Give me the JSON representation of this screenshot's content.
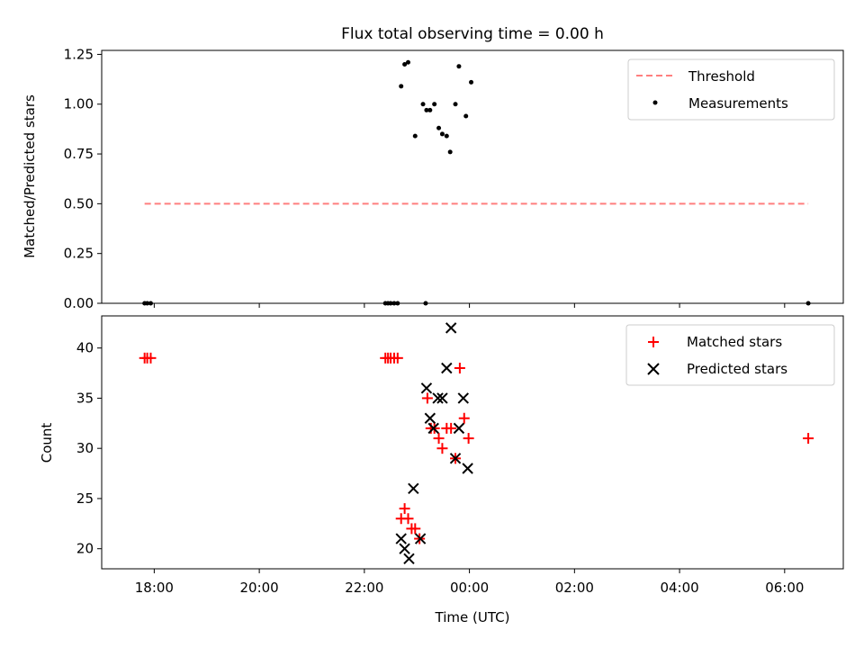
{
  "figure": {
    "title": "Flux total observing time = 0.00 h"
  },
  "chart_data": [
    {
      "type": "scatter",
      "ylabel": "Matched/Predicted stars",
      "xlabel": "",
      "x_axis": "time",
      "xlim": [
        "17:00",
        "07:07"
      ],
      "ylim": [
        0,
        1.27
      ],
      "yticks": [
        0.0,
        0.25,
        0.5,
        0.75,
        1.0,
        1.25
      ],
      "ytick_labels": [
        "0.00",
        "0.25",
        "0.50",
        "0.75",
        "1.00",
        "1.25"
      ],
      "grid": false,
      "legend": {
        "placement": "top-right",
        "entries": [
          "Threshold",
          "Measurements"
        ]
      },
      "threshold": {
        "name": "Threshold",
        "value": 0.5,
        "x": [
          "17:49",
          "06:27"
        ],
        "color": "#ff7f7f"
      },
      "series": [
        {
          "name": "Measurements",
          "marker": "dot",
          "color": "#000000",
          "points": [
            [
              "17:49",
              0.0
            ],
            [
              "17:52",
              0.0
            ],
            [
              "17:56",
              0.0
            ],
            [
              "22:24",
              0.0
            ],
            [
              "22:27",
              0.0
            ],
            [
              "22:30",
              0.0
            ],
            [
              "22:34",
              0.0
            ],
            [
              "22:38",
              0.0
            ],
            [
              "23:10",
              0.0
            ],
            [
              "22:42",
              1.09
            ],
            [
              "22:46",
              1.2
            ],
            [
              "22:50",
              1.21
            ],
            [
              "22:58",
              0.84
            ],
            [
              "23:07",
              1.0
            ],
            [
              "23:11",
              0.97
            ],
            [
              "23:15",
              0.97
            ],
            [
              "23:20",
              1.0
            ],
            [
              "23:25",
              0.88
            ],
            [
              "23:29",
              0.85
            ],
            [
              "23:34",
              0.84
            ],
            [
              "23:38",
              0.76
            ],
            [
              "23:44",
              1.0
            ],
            [
              "23:48",
              1.19
            ],
            [
              "23:56",
              0.94
            ],
            [
              "00:02",
              1.11
            ],
            [
              "06:27",
              0.0
            ]
          ]
        }
      ]
    },
    {
      "type": "scatter",
      "ylabel": "Count",
      "xlabel": "Time (UTC)",
      "x_axis": "time",
      "xlim": [
        "17:00",
        "07:07"
      ],
      "ylim": [
        18,
        43.2
      ],
      "yticks": [
        20,
        25,
        30,
        35,
        40
      ],
      "ytick_labels": [
        "20",
        "25",
        "30",
        "35",
        "40"
      ],
      "xticks": [
        "18:00",
        "20:00",
        "22:00",
        "00:00",
        "02:00",
        "04:00",
        "06:00"
      ],
      "xtick_labels": [
        "18:00",
        "20:00",
        "22:00",
        "00:00",
        "02:00",
        "04:00",
        "06:00"
      ],
      "grid": false,
      "legend": {
        "placement": "top-right",
        "entries": [
          "Matched stars",
          "Predicted stars"
        ]
      },
      "series": [
        {
          "name": "Matched stars",
          "marker": "plus",
          "color": "#ff0000",
          "points": [
            [
              "17:49",
              39
            ],
            [
              "17:52",
              39
            ],
            [
              "17:56",
              39
            ],
            [
              "22:24",
              39
            ],
            [
              "22:27",
              39
            ],
            [
              "22:30",
              39
            ],
            [
              "22:34",
              39
            ],
            [
              "22:38",
              39
            ],
            [
              "22:42",
              23
            ],
            [
              "22:46",
              24
            ],
            [
              "22:50",
              23
            ],
            [
              "22:54",
              22
            ],
            [
              "22:58",
              22
            ],
            [
              "23:03",
              21
            ],
            [
              "23:12",
              35
            ],
            [
              "23:16",
              32
            ],
            [
              "23:20",
              32
            ],
            [
              "23:25",
              31
            ],
            [
              "23:29",
              30
            ],
            [
              "23:34",
              32
            ],
            [
              "23:39",
              32
            ],
            [
              "23:44",
              29
            ],
            [
              "23:49",
              38
            ],
            [
              "23:54",
              33
            ],
            [
              "23:59",
              31
            ],
            [
              "06:27",
              31
            ]
          ]
        },
        {
          "name": "Predicted stars",
          "marker": "x",
          "color": "#000000",
          "points": [
            [
              "22:42",
              21
            ],
            [
              "22:46",
              20
            ],
            [
              "22:51",
              19
            ],
            [
              "22:56",
              26
            ],
            [
              "23:04",
              21
            ],
            [
              "23:11",
              36
            ],
            [
              "23:15",
              33
            ],
            [
              "23:19",
              32
            ],
            [
              "23:24",
              35
            ],
            [
              "23:29",
              35
            ],
            [
              "23:34",
              38
            ],
            [
              "23:39",
              42
            ],
            [
              "23:44",
              29
            ],
            [
              "23:48",
              32
            ],
            [
              "23:53",
              35
            ],
            [
              "23:58",
              28
            ]
          ]
        }
      ]
    }
  ]
}
